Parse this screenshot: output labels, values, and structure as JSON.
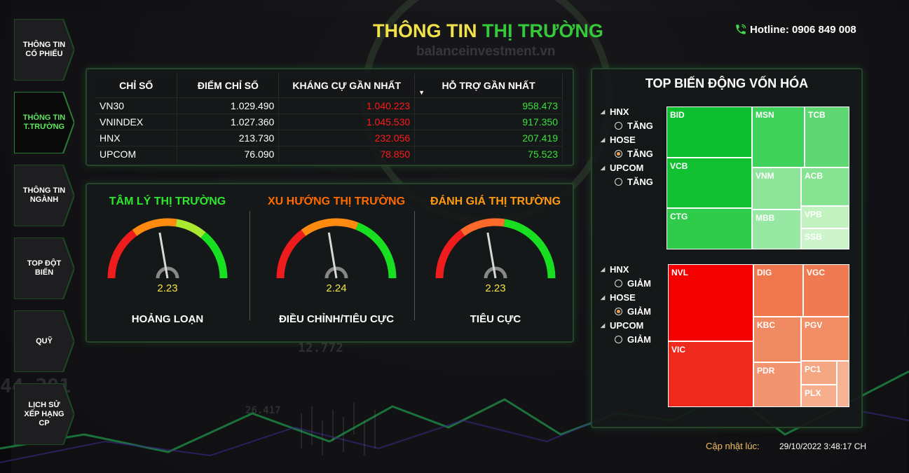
{
  "header": {
    "title_part1": "THÔNG TIN",
    "title_part2": "THỊ TRƯỜNG",
    "watermark": "balanceinvestment.vn",
    "hotline": "Hotline: 0906 849 008"
  },
  "nav": {
    "items": [
      {
        "label": "THÔNG TIN CỔ PHIẾU"
      },
      {
        "label": "THÔNG TIN T.TRƯỜNG"
      },
      {
        "label": "THÔNG TIN NGÀNH"
      },
      {
        "label": "TOP ĐỘT BIẾN"
      },
      {
        "label": "QUỸ"
      },
      {
        "label": "LỊCH SỬ XẾP HẠNG CP"
      }
    ]
  },
  "index_table": {
    "headers": [
      "CHỈ SỐ",
      "ĐIỂM CHỈ SỐ",
      "KHÁNG CỰ GẦN NHẤT",
      "HỖ TRỢ GẦN NHẤT"
    ],
    "rows": [
      [
        "VN30",
        "1.029.490",
        "1.040.223",
        "958.473"
      ],
      [
        "VNINDEX",
        "1.027.360",
        "1.045.530",
        "917.350"
      ],
      [
        "HNX",
        "213.730",
        "232.056",
        "207.419"
      ],
      [
        "UPCOM",
        "76.090",
        "78.850",
        "75.523"
      ]
    ]
  },
  "gauges": [
    {
      "title": "TÂM LÝ THỊ TRƯỜNG",
      "title_color": "#2ee62e",
      "value": "2.23",
      "value_num": 2.23,
      "label": "HOẢNG LOẠN"
    },
    {
      "title": "XU HƯỚNG THỊ TRƯỜNG",
      "title_color": "#ff6a00",
      "value": "2.24",
      "value_num": 2.24,
      "label": "ĐIỀU CHỈNH/TIÊU CỰC"
    },
    {
      "title": "ĐÁNH GIÁ THỊ TRƯỜNG",
      "title_color": "#ff9a10",
      "value": "2.23",
      "value_num": 2.23,
      "label": "TIÊU CỰC"
    }
  ],
  "treemap": {
    "title": "TOP BIẾN ĐỘNG VỐN HÓA",
    "up_filter": [
      {
        "exchange": "HNX",
        "option": "TĂNG",
        "selected": false
      },
      {
        "exchange": "HOSE",
        "option": "TĂNG",
        "selected": true
      },
      {
        "exchange": "UPCOM",
        "option": "TĂNG",
        "selected": false
      }
    ],
    "down_filter": [
      {
        "exchange": "HNX",
        "option": "GIẢM",
        "selected": false
      },
      {
        "exchange": "HOSE",
        "option": "GIẢM",
        "selected": true
      },
      {
        "exchange": "UPCOM",
        "option": "GIẢM",
        "selected": false
      }
    ],
    "up_tiles": [
      "BID",
      "MSN",
      "TCB",
      "VCB",
      "VNM",
      "ACB",
      "CTG",
      "MBB",
      "VPB",
      "SSB"
    ],
    "down_tiles": [
      "NVL",
      "DIG",
      "VGC",
      "KBC",
      "PGV",
      "VIC",
      "PDR",
      "PC1",
      "PLX"
    ]
  },
  "update": {
    "label": "Cập nhật lúc:",
    "value": "29/10/2022 3:48:17 CH"
  },
  "background_numbers": [
    "44.291",
    "26.417",
    "12.772"
  ],
  "colors": {
    "accent_green": "#35c83a",
    "accent_yellow": "#f2e24a",
    "up_red": "#ff1a1a",
    "panel_border": "#23452a"
  }
}
